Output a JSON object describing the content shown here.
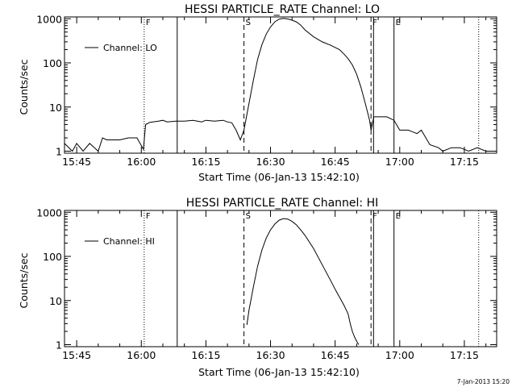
{
  "footer": {
    "timestamp": "7-Jan-2013 15:20"
  },
  "chart_data": [
    {
      "type": "line",
      "title": "HESSI PARTICLE_RATE Channel: LO",
      "xlabel": "Start Time (06-Jan-13 15:42:10)",
      "ylabel": "Counts/sec",
      "y_scale": "log",
      "xlim": [
        "15:42:10",
        "17:22:30"
      ],
      "ylim": [
        0.9,
        1100
      ],
      "x_ticks": [
        "15:45",
        "16:00",
        "16:15",
        "16:30",
        "16:45",
        "17:00",
        "17:15"
      ],
      "y_ticks": [
        {
          "value": 1,
          "label": "1"
        },
        {
          "value": 10,
          "label": "10"
        },
        {
          "value": 100,
          "label": "100"
        },
        {
          "value": 1000,
          "label": "1000"
        }
      ],
      "legend": {
        "placement": "top-left",
        "entries": [
          "Channel: LO"
        ]
      },
      "vertical_markers": [
        {
          "time": "16:00:40",
          "style": "dotted",
          "label": "F"
        },
        {
          "time": "16:08:20",
          "style": "solid",
          "label": ""
        },
        {
          "time": "16:23:50",
          "style": "dashed",
          "label": "S"
        },
        {
          "time": "16:53:20",
          "style": "dashed",
          "label": "F"
        },
        {
          "time": "16:53:55",
          "style": "solid",
          "label": ""
        },
        {
          "time": "16:58:40",
          "style": "solid",
          "label": "E"
        },
        {
          "time": "17:18:20",
          "style": "dotted",
          "label": ""
        }
      ],
      "series": [
        {
          "name": "Channel: LO",
          "x": [
            "15:42:10",
            "15:44:00",
            "15:45:00",
            "15:46:30",
            "15:48:00",
            "15:50:00",
            "15:51:00",
            "15:52:00",
            "15:54:00",
            "15:55:00",
            "15:57:00",
            "15:59:00",
            "16:00:30",
            "16:01:00",
            "16:02:00",
            "16:04:00",
            "16:05:00",
            "16:06:00",
            "16:08:00",
            "16:10:00",
            "16:12:00",
            "16:14:00",
            "16:15:00",
            "16:17:00",
            "16:19:00",
            "16:20:00",
            "16:21:00",
            "16:22:00",
            "16:23:00",
            "16:23:50",
            "16:25:00",
            "16:26:00",
            "16:27:00",
            "16:28:00",
            "16:29:00",
            "16:30:00",
            "16:31:00",
            "16:32:00",
            "16:33:00",
            "16:34:00",
            "16:35:00",
            "16:36:00",
            "16:37:00",
            "16:38:00",
            "16:40:00",
            "16:42:00",
            "16:44:00",
            "16:46:00",
            "16:47:00",
            "16:48:00",
            "16:49:00",
            "16:50:00",
            "16:51:00",
            "16:52:00",
            "16:53:00",
            "16:53:20",
            "16:54:00",
            "16:55:00",
            "16:57:00",
            "16:58:40",
            "17:00:00",
            "17:02:00",
            "17:04:00",
            "17:05:00",
            "17:07:00",
            "17:09:00",
            "17:10:00",
            "17:12:00",
            "17:14:00",
            "17:16:00",
            "17:18:00",
            "17:20:00",
            "17:22:30"
          ],
          "values": [
            1.5,
            1,
            1.5,
            1,
            1.5,
            1,
            2,
            1.8,
            1.8,
            1.8,
            2,
            2,
            1.1,
            4,
            4.5,
            4.8,
            5,
            4.6,
            4.8,
            4.8,
            5,
            4.6,
            5,
            4.8,
            5,
            4.6,
            4.4,
            3,
            1.8,
            3,
            12,
            40,
            120,
            260,
            450,
            650,
            850,
            980,
            1020,
            990,
            930,
            850,
            720,
            560,
            390,
            300,
            250,
            200,
            160,
            125,
            90,
            55,
            28,
            12,
            5,
            3,
            6,
            6,
            6,
            5,
            3,
            3,
            2.5,
            3,
            1.4,
            1.2,
            1,
            1.2,
            1.2,
            1,
            1.2,
            1,
            1
          ]
        }
      ]
    },
    {
      "type": "line",
      "title": "HESSI PARTICLE_RATE Channel: HI",
      "xlabel": "Start Time (06-Jan-13 15:42:10)",
      "ylabel": "Counts/sec",
      "y_scale": "log",
      "xlim": [
        "15:42:10",
        "17:22:30"
      ],
      "ylim": [
        0.9,
        1100
      ],
      "x_ticks": [
        "15:45",
        "16:00",
        "16:15",
        "16:30",
        "16:45",
        "17:00",
        "17:15"
      ],
      "y_ticks": [
        {
          "value": 1,
          "label": "1"
        },
        {
          "value": 10,
          "label": "10"
        },
        {
          "value": 100,
          "label": "100"
        },
        {
          "value": 1000,
          "label": "1000"
        }
      ],
      "legend": {
        "placement": "top-left",
        "entries": [
          "Channel: HI"
        ]
      },
      "vertical_markers": [
        {
          "time": "16:00:40",
          "style": "dotted",
          "label": "F"
        },
        {
          "time": "16:08:20",
          "style": "solid",
          "label": ""
        },
        {
          "time": "16:23:50",
          "style": "dashed",
          "label": "S"
        },
        {
          "time": "16:53:20",
          "style": "dashed",
          "label": "F"
        },
        {
          "time": "16:53:55",
          "style": "solid",
          "label": ""
        },
        {
          "time": "16:58:40",
          "style": "solid",
          "label": "E"
        },
        {
          "time": "17:18:20",
          "style": "dotted",
          "label": ""
        }
      ],
      "series": [
        {
          "name": "Channel: HI",
          "x": [
            "16:24:30",
            "16:25:00",
            "16:26:00",
            "16:27:00",
            "16:28:00",
            "16:29:00",
            "16:30:00",
            "16:31:00",
            "16:32:00",
            "16:33:00",
            "16:34:00",
            "16:35:00",
            "16:36:00",
            "16:37:00",
            "16:38:00",
            "16:40:00",
            "16:42:00",
            "16:44:00",
            "16:45:00",
            "16:46:00",
            "16:47:00",
            "16:48:00",
            "16:48:30",
            "16:49:00",
            "16:49:30",
            "16:50:00",
            "16:50:30"
          ],
          "values": [
            2.8,
            6,
            20,
            60,
            140,
            260,
            400,
            540,
            660,
            720,
            700,
            620,
            520,
            400,
            300,
            150,
            65,
            28,
            18,
            12,
            8,
            5,
            3,
            2,
            1.5,
            1.2,
            1
          ]
        }
      ]
    }
  ]
}
